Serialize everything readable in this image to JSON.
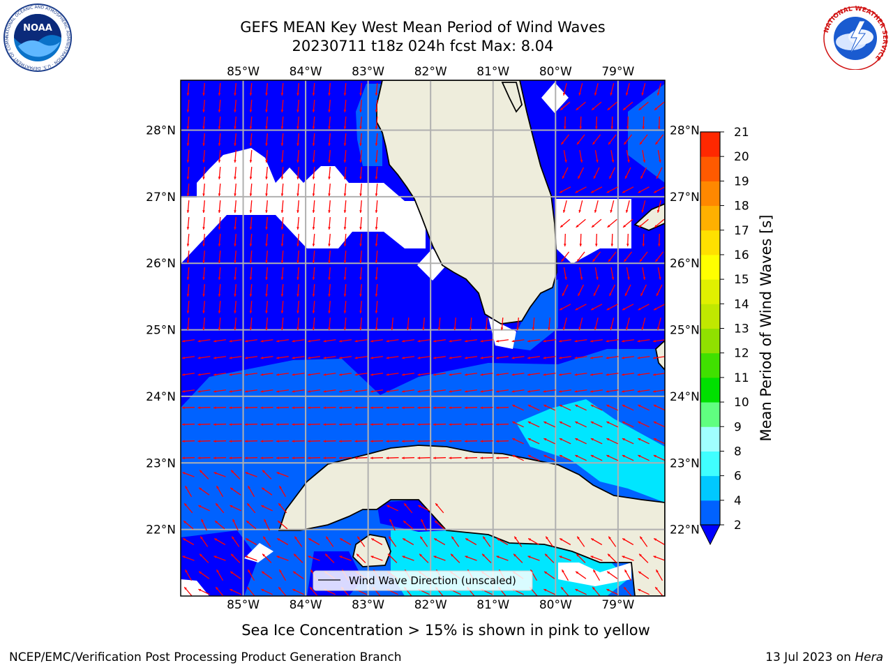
{
  "title": {
    "line1": "GEFS MEAN Key West Mean Period of Wind Waves",
    "line2": "20230711 t18z 024h fcst   Max: 8.04"
  },
  "logos": {
    "noaa": {
      "text": "NOAA",
      "ring_text": "NATIONAL OCEANIC AND ATMOSPHERIC ADMINISTRATION · U.S. DEPARTMENT OF COMMERCE",
      "icon": "noaa-logo"
    },
    "nws": {
      "ring_text": "NATIONAL WEATHER SERVICE",
      "icon": "nws-logo"
    }
  },
  "map": {
    "lon_ticks": [
      "85°W",
      "84°W",
      "83°W",
      "82°W",
      "81°W",
      "80°W",
      "79°W"
    ],
    "lat_ticks": [
      "28°N",
      "27°N",
      "26°N",
      "25°N",
      "24°N",
      "23°N",
      "22°N"
    ],
    "extent": {
      "lon_min": -86.0,
      "lon_max": -78.25,
      "lat_min": 21.0,
      "lat_max": 28.75
    },
    "legend_label": "Wind Wave Direction (unscaled)",
    "colors": {
      "land": "#eeeddc",
      "sea_min": "#0000ff",
      "arrow": "#ff0000",
      "grid": "#b0b0b0"
    }
  },
  "colorbar": {
    "label": "Mean Period of Wind Waves [s]",
    "ticks": [
      "2",
      "4",
      "6",
      "8",
      "9",
      "10",
      "11",
      "12",
      "13",
      "14",
      "15",
      "16",
      "17",
      "18",
      "19",
      "20",
      "21"
    ],
    "colors": [
      "#0062ff",
      "#00c8ff",
      "#40ffff",
      "#a0ffff",
      "#60ff80",
      "#00e000",
      "#40e000",
      "#90e000",
      "#c0e800",
      "#e0f000",
      "#ffff00",
      "#ffe000",
      "#ffb000",
      "#ff8800",
      "#ff5a00",
      "#ff2800"
    ],
    "extend_color": "#0000ff"
  },
  "caption": "Sea Ice Concentration > 15% is shown in pink to yellow",
  "footer": {
    "left": "NCEP/EMC/Verification Post Processing Product Generation Branch",
    "date": "13 Jul 2023 on ",
    "host": "Hera"
  }
}
